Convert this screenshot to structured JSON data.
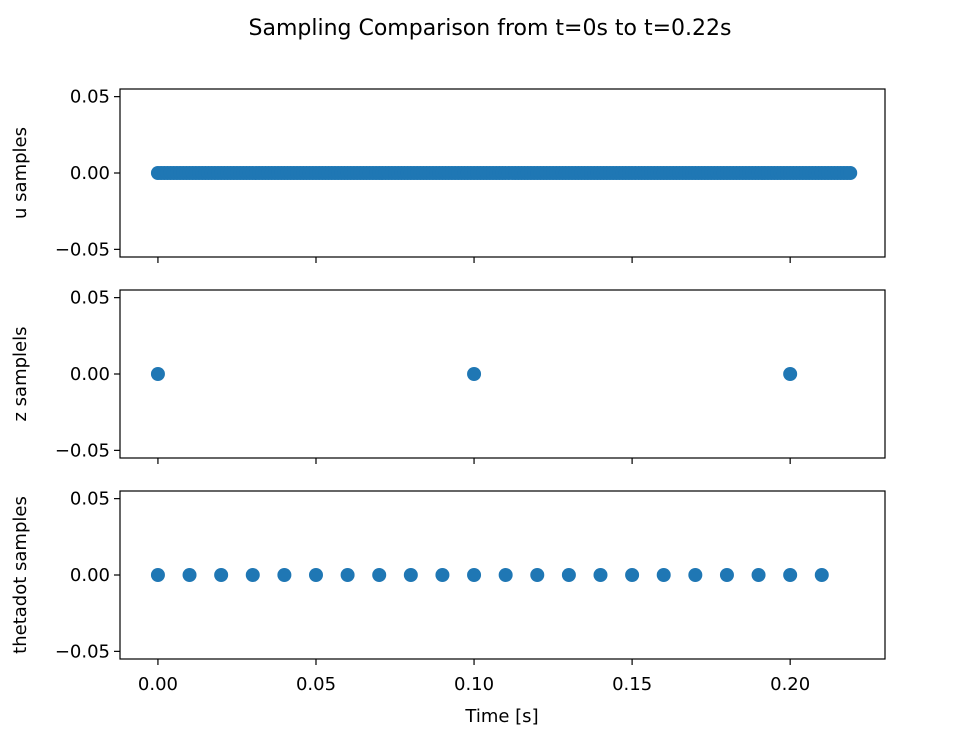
{
  "chart_data": {
    "type": "scatter",
    "title": "Sampling Comparison from t=0s to t=0.22s",
    "xlabel": "Time [s]",
    "xlim": [
      -0.012,
      0.23
    ],
    "x_ticks": [
      0.0,
      0.05,
      0.1,
      0.15,
      0.2
    ],
    "x_tick_labels": [
      "0.00",
      "0.05",
      "0.10",
      "0.15",
      "0.20"
    ],
    "color": "#1f77b4",
    "shared_x": true,
    "grid": false,
    "subplots": [
      {
        "ylabel": "u samples",
        "ylim": [
          -0.055,
          0.055
        ],
        "y_ticks": [
          0.05,
          0.0,
          -0.05
        ],
        "y_tick_labels": [
          "0.05",
          "0.00",
          "−0.05"
        ],
        "x_start": 0.0,
        "x_end": 0.219,
        "x_step": 0.001,
        "y": 0.0
      },
      {
        "ylabel": "z samplels",
        "ylim": [
          -0.055,
          0.055
        ],
        "y_ticks": [
          0.05,
          0.0,
          -0.05
        ],
        "y_tick_labels": [
          "0.05",
          "0.00",
          "−0.05"
        ],
        "x": [
          0.0,
          0.1,
          0.2
        ],
        "y": [
          0.0,
          0.0,
          0.0
        ]
      },
      {
        "ylabel": "thetadot samples",
        "ylim": [
          -0.055,
          0.055
        ],
        "y_ticks": [
          0.05,
          0.0,
          -0.05
        ],
        "y_tick_labels": [
          "0.05",
          "0.00",
          "−0.05"
        ],
        "x": [
          0.0,
          0.01,
          0.02,
          0.03,
          0.04,
          0.05,
          0.06,
          0.07,
          0.08,
          0.09,
          0.1,
          0.11,
          0.12,
          0.13,
          0.14,
          0.15,
          0.16,
          0.17,
          0.18,
          0.19,
          0.2,
          0.21
        ],
        "y": [
          0.0,
          0.0,
          0.0,
          0.0,
          0.0,
          0.0,
          0.0,
          0.0,
          0.0,
          0.0,
          0.0,
          0.0,
          0.0,
          0.0,
          0.0,
          0.0,
          0.0,
          0.0,
          0.0,
          0.0,
          0.0,
          0.0
        ]
      }
    ]
  }
}
